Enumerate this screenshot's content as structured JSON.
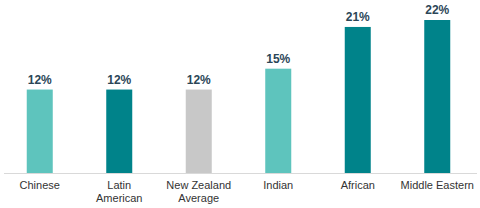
{
  "chart_data": {
    "type": "bar",
    "categories": [
      "Chinese",
      "Latin American",
      "New Zealand Average",
      "Indian",
      "African",
      "Middle Eastern"
    ],
    "values": [
      12,
      12,
      12,
      15,
      21,
      22
    ],
    "value_labels": [
      "12%",
      "12%",
      "12%",
      "15%",
      "21%",
      "22%"
    ],
    "colors": [
      "#5ec4bd",
      "#00838a",
      "#c8c8c8",
      "#5ec4bd",
      "#00838a",
      "#00838a"
    ],
    "ylim": [
      0,
      22
    ],
    "data_labels": true,
    "tick_labels": "x",
    "grid": false
  }
}
